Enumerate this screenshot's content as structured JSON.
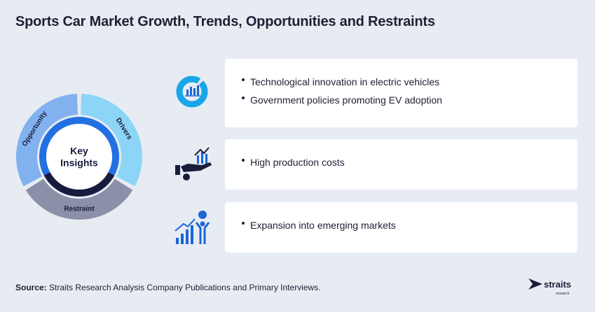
{
  "header": {
    "title": "Sports Car Market Growth, Trends, Opportunities and Restraints"
  },
  "ring": {
    "center": [
      "Key",
      "Insights"
    ],
    "segments": [
      "Drivers",
      "Restraint",
      "Opportunity"
    ]
  },
  "sections": [
    {
      "items": [
        "Technological innovation in electric vehicles",
        "Government policies promoting EV adoption"
      ]
    },
    {
      "items": [
        "High production costs"
      ]
    },
    {
      "items": [
        "Expansion into emerging markets"
      ]
    }
  ],
  "footer": {
    "source_label": "Source:",
    "source_text": "Straits Research Analysis Company Publications and Primary Interviews."
  },
  "logo": {
    "name": "straits",
    "tagline": "research"
  }
}
